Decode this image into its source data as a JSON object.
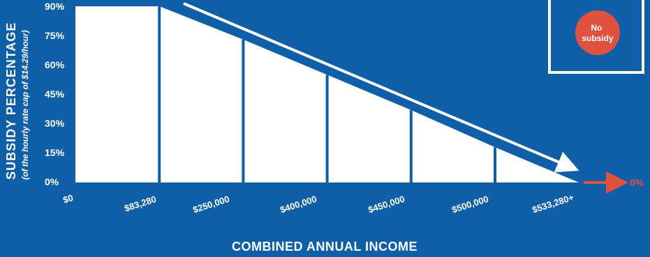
{
  "chart_data": {
    "type": "area",
    "title": "",
    "xlabel": "COMBINED ANNUAL INCOME",
    "ylabel": "SUBSIDY PERCENTAGE",
    "ylabel_sub": "(of the hourly rate cap of $14.29/hour)",
    "y_ticks": [
      "0%",
      "15%",
      "30%",
      "45%",
      "60%",
      "75%",
      "90%"
    ],
    "x_ticks": [
      "$0",
      "$83,280",
      "$250,000",
      "$400,000",
      "$450,000",
      "$500,000",
      "$533,280+"
    ],
    "ylim": [
      0,
      90
    ],
    "points": [
      {
        "x": "$0",
        "y": 90
      },
      {
        "x": "$83,280",
        "y": 90
      },
      {
        "x": "$250,000",
        "y": 73
      },
      {
        "x": "$400,000",
        "y": 55
      },
      {
        "x": "$450,000",
        "y": 37
      },
      {
        "x": "$500,000",
        "y": 18
      },
      {
        "x": "$533,280+",
        "y": 0
      }
    ],
    "beyond_label": "0%",
    "legend": {
      "label": "No subsidy",
      "placement": "top-right"
    },
    "colors": {
      "background": "#0f5fa8",
      "fill": "#ffffff",
      "accent": "#e0523f"
    }
  }
}
